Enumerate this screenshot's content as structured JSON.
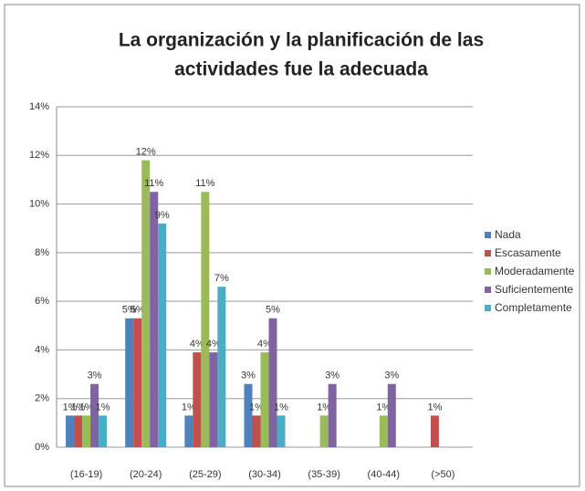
{
  "chart_data": {
    "type": "bar",
    "title": [
      "La organización y la planificación de las",
      "actividades fue la adecuada"
    ],
    "categories": [
      "(16-19)",
      "(20-24)",
      "(25-29)",
      "(30-34)",
      "(35-39)",
      "(40-44)",
      "(>50)"
    ],
    "ylim": [
      0,
      14
    ],
    "yticks": [
      {
        "value": 0,
        "label": "0%"
      },
      {
        "value": 2,
        "label": "2%"
      },
      {
        "value": 4,
        "label": "4%"
      },
      {
        "value": 6,
        "label": "6%"
      },
      {
        "value": 8,
        "label": "8%"
      },
      {
        "value": 10,
        "label": "10%"
      },
      {
        "value": 12,
        "label": "12%"
      },
      {
        "value": 14,
        "label": "14%"
      }
    ],
    "grid": true,
    "legend": "right",
    "series": [
      {
        "name": "Nada",
        "color": "#4f81bd",
        "values": [
          1.3,
          5.3,
          1.3,
          2.6,
          null,
          null,
          null
        ],
        "value_labels": [
          "1%",
          "5%",
          "1%",
          "3%",
          null,
          null,
          null
        ]
      },
      {
        "name": "Escasamente",
        "color": "#c0504d",
        "values": [
          1.3,
          5.3,
          3.9,
          1.3,
          null,
          null,
          1.3
        ],
        "value_labels": [
          "1%",
          "5%",
          "4%",
          "1%",
          null,
          null,
          "1%"
        ]
      },
      {
        "name": "Moderadamente",
        "color": "#9bbb59",
        "values": [
          1.3,
          11.8,
          10.5,
          3.9,
          1.3,
          1.3,
          null
        ],
        "value_labels": [
          "1%",
          "12%",
          "11%",
          "4%",
          "1%",
          "1%",
          null
        ]
      },
      {
        "name": "Suficientemente",
        "color": "#8064a2",
        "values": [
          2.6,
          10.5,
          3.9,
          5.3,
          2.6,
          2.6,
          null
        ],
        "value_labels": [
          "3%",
          "11%",
          "4%",
          "5%",
          "3%",
          "3%",
          null
        ]
      },
      {
        "name": "Completamente",
        "color": "#4bacc6",
        "values": [
          1.3,
          9.2,
          6.6,
          1.3,
          null,
          null,
          null
        ],
        "value_labels": [
          "1%",
          "9%",
          "7%",
          "1%",
          null,
          null,
          null
        ]
      }
    ]
  }
}
